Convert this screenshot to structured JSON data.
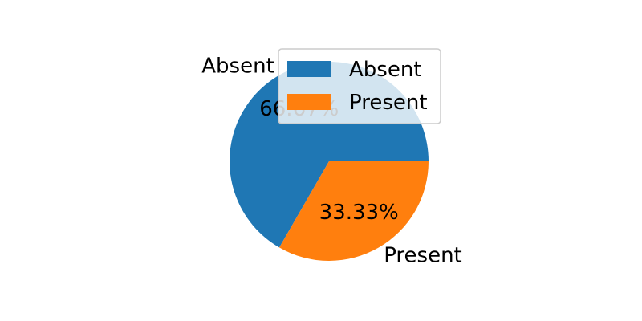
{
  "chart_data": {
    "type": "pie",
    "title": "",
    "labels": [
      "Absent",
      "Present"
    ],
    "values": [
      66.67,
      33.33
    ],
    "percent_labels": [
      "66.67%",
      "33.33%"
    ],
    "colors": [
      "#1f77b4",
      "#ff7f0e"
    ],
    "start_angle_deg": 0,
    "direction": "counterclockwise",
    "legend": {
      "placement": "upper-right",
      "entries": [
        "Absent",
        "Present"
      ]
    }
  }
}
